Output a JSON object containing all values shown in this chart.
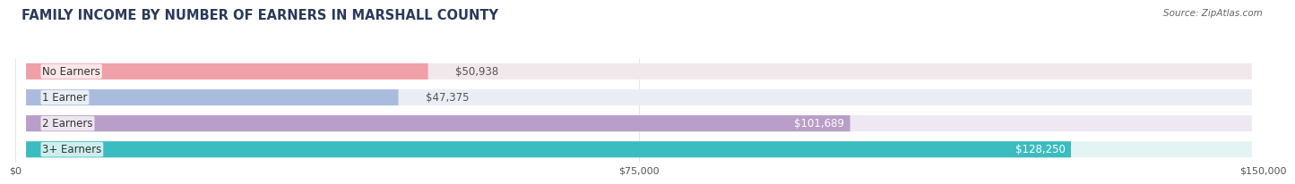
{
  "title": "FAMILY INCOME BY NUMBER OF EARNERS IN MARSHALL COUNTY",
  "source": "Source: ZipAtlas.com",
  "categories": [
    "No Earners",
    "1 Earner",
    "2 Earners",
    "3+ Earners"
  ],
  "values": [
    50938,
    47375,
    101689,
    128250
  ],
  "bar_colors": [
    "#f0a0a8",
    "#aabcde",
    "#b89ec8",
    "#3bbcbe"
  ],
  "label_colors": [
    "#444444",
    "#444444",
    "#ffffff",
    "#ffffff"
  ],
  "bg_colors": [
    "#f0e8ea",
    "#eaeef4",
    "#ede8f2",
    "#e4f4f4"
  ],
  "xlim": [
    0,
    150000
  ],
  "xticks": [
    0,
    75000,
    150000
  ],
  "xticklabels": [
    "$0",
    "$75,000",
    "$150,000"
  ],
  "title_color": "#2a3a5a",
  "source_color": "#666666",
  "bar_height": 0.62,
  "value_fontsize": 8.5,
  "label_fontsize": 8.5,
  "title_fontsize": 10.5
}
